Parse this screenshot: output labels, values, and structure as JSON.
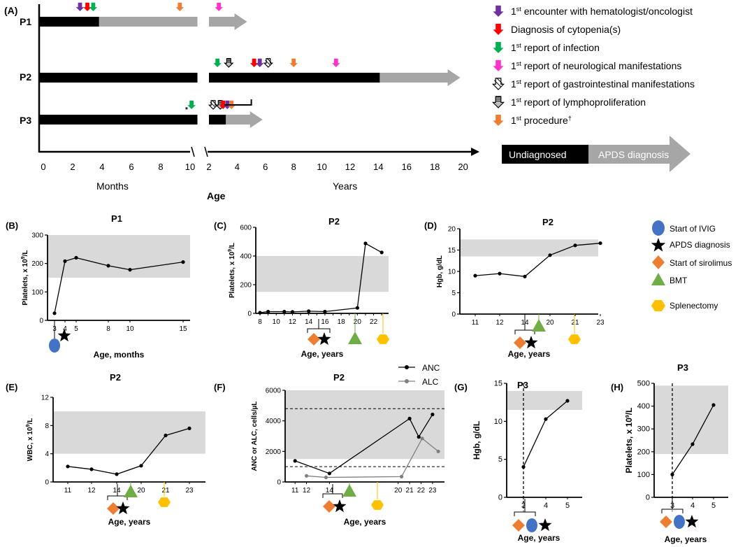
{
  "colors": {
    "black_bar": "#000000",
    "gray_bar": "#a6a6a6",
    "normal_range": "#d9d9d9",
    "purple": "#7030a0",
    "red": "#ff0000",
    "green": "#00b050",
    "magenta": "#ff33cc",
    "orange": "#ed7d31",
    "ivig_blue": "#4472c4",
    "bmt_green": "#70ad47",
    "splenectomy_gold": "#ffc000",
    "alc_gray": "#7f7f7f"
  },
  "timeline": {
    "panel_label": "(A)",
    "patients": [
      "P1",
      "P2",
      "P3"
    ],
    "months_ticks": [
      "0",
      "2",
      "4",
      "6",
      "8",
      "10"
    ],
    "years_ticks": [
      "2",
      "4",
      "6",
      "8",
      "10",
      "12",
      "14",
      "16",
      "18",
      "20"
    ],
    "months_label": "Months",
    "years_label": "Years",
    "age_label": "Age",
    "asterisk": "*",
    "events": [
      {
        "patient": "P1",
        "axis": "months",
        "value": 2.5,
        "event": "encounter"
      },
      {
        "patient": "P1",
        "axis": "months",
        "value": 3.0,
        "event": "diagnosis"
      },
      {
        "patient": "P1",
        "axis": "months",
        "value": 3.4,
        "event": "infection"
      },
      {
        "patient": "P1",
        "axis": "months",
        "value": 9.3,
        "event": "procedure"
      },
      {
        "patient": "P1",
        "axis": "years",
        "value": 2.7,
        "event": "neuro"
      },
      {
        "patient": "P2",
        "axis": "years",
        "value": 2.6,
        "event": "infection"
      },
      {
        "patient": "P2",
        "axis": "years",
        "value": 3.4,
        "event": "lymph"
      },
      {
        "patient": "P2",
        "axis": "years",
        "value": 5.2,
        "event": "diagnosis"
      },
      {
        "patient": "P2",
        "axis": "years",
        "value": 5.6,
        "event": "encounter"
      },
      {
        "patient": "P2",
        "axis": "years",
        "value": 6.2,
        "event": "gi"
      },
      {
        "patient": "P2",
        "axis": "years",
        "value": 8.0,
        "event": "procedure"
      },
      {
        "patient": "P2",
        "axis": "years",
        "value": 11.0,
        "event": "neuro"
      },
      {
        "patient": "P3",
        "axis": "months",
        "value": 10.1,
        "event": "infection"
      },
      {
        "patient": "P3",
        "axis": "years",
        "value": 2.3,
        "event": "gi"
      },
      {
        "patient": "P3",
        "axis": "years",
        "value": 2.8,
        "event": "lymph"
      },
      {
        "patient": "P3",
        "axis": "years",
        "value": 3.0,
        "event": "diagnosis"
      },
      {
        "patient": "P3",
        "axis": "years",
        "value": 3.3,
        "event": "encounter"
      },
      {
        "patient": "P3",
        "axis": "years",
        "value": 3.6,
        "event": "procedure"
      }
    ],
    "bars": [
      {
        "patient": "P1",
        "undiagnosed_months_to": 3.8,
        "gray_months_to": 10.5,
        "black_years_to": 1.5,
        "gray_years_to": 4.7
      },
      {
        "patient": "P2",
        "undiagnosed_months_to": 10.5,
        "black_years_to": 14.1,
        "gray_years_to": 19.8
      },
      {
        "patient": "P3",
        "undiagnosed_months_to": 10.5,
        "black_years_to": 3.2,
        "gray_years_to": 5.8
      }
    ]
  },
  "legend_a": {
    "items": [
      {
        "event": "encounter",
        "sup": "st",
        "text": " encounter with hematologist/oncologist"
      },
      {
        "event": "diagnosis",
        "sup": "",
        "text": "Diagnosis of cytopenia(s)"
      },
      {
        "event": "infection",
        "sup": "st",
        "text": " report of infection"
      },
      {
        "event": "neuro",
        "sup": "st",
        "text": " report of neurological manifestations"
      },
      {
        "event": "gi",
        "sup": "st",
        "text": " report of gastrointestinal manifestations"
      },
      {
        "event": "lymph",
        "sup": "st",
        "text": " report of lymphoproliferation"
      },
      {
        "event": "procedure",
        "sup": "st",
        "text": " procedure",
        "sup2": "†"
      }
    ],
    "undiagnosed": "Undiagnosed",
    "apds": "APDS diagnosis"
  },
  "legend_b": {
    "items": [
      "Start of IVIG",
      "APDS diagnosis",
      "Start of sirolimus",
      "BMT",
      "Splenectomy"
    ]
  },
  "chart_data": [
    {
      "id": "B",
      "label": "(B)",
      "type": "line",
      "title": "P1",
      "ylabel": "Platelets, x 10",
      "ylabel_sup": "9",
      "ylabel_unit": "/L",
      "xlabel": "Age, months",
      "categories": [
        "3",
        "4",
        "5",
        "8",
        "10",
        "15"
      ],
      "ylim": [
        0,
        300
      ],
      "yticks": [
        "0",
        "100",
        "200",
        "300"
      ],
      "normal_range": [
        150,
        300
      ],
      "series": [
        {
          "name": "Platelets",
          "values": [
            25,
            208,
            220,
            192,
            178,
            205
          ]
        }
      ],
      "markers": [
        "ivig",
        "apds"
      ]
    },
    {
      "id": "C",
      "label": "(C)",
      "type": "line",
      "title": "P2",
      "ylabel": "Platelets, x 10",
      "ylabel_sup": "9",
      "ylabel_unit": "/L",
      "xlabel": "Age, years",
      "categories": [
        "8",
        "9",
        "10",
        "11",
        "12",
        "13",
        "14",
        "15",
        "16",
        "17",
        "18",
        "19",
        "20",
        "21",
        "22",
        "23"
      ],
      "xtick_labels": [
        "8",
        "10",
        "12",
        "14",
        "16",
        "18",
        "20",
        "22"
      ],
      "ylim": [
        0,
        600
      ],
      "yticks": [
        "0",
        "200",
        "400",
        "600"
      ],
      "normal_range": [
        150,
        400
      ],
      "series": [
        {
          "name": "Platelets",
          "x": [
            8,
            9,
            11,
            12,
            14,
            16,
            20,
            21,
            23
          ],
          "values": [
            5,
            12,
            12,
            10,
            15,
            12,
            38,
            488,
            425
          ]
        }
      ],
      "markers": [
        "sirolimus",
        "apds",
        "bmt",
        "splenectomy"
      ]
    },
    {
      "id": "D",
      "label": "(D)",
      "type": "line",
      "title": "P2",
      "ylabel": "Hgb, g/dL",
      "xlabel": "Age, years",
      "categories": [
        "11",
        "12",
        "14",
        "20",
        "21",
        "23"
      ],
      "ylim": [
        0,
        20
      ],
      "yticks": [
        "0",
        "5",
        "10",
        "15",
        "20"
      ],
      "normal_range": [
        13.5,
        17.5
      ],
      "series": [
        {
          "name": "Hgb",
          "values": [
            9.0,
            9.5,
            8.8,
            13.8,
            16.1,
            16.6
          ]
        }
      ],
      "markers": [
        "sirolimus",
        "apds",
        "bmt",
        "splenectomy"
      ]
    },
    {
      "id": "E",
      "label": "(E)",
      "type": "line",
      "title": "P2",
      "ylabel": "WBC, x 10",
      "ylabel_sup": "9",
      "ylabel_unit": "/L",
      "xlabel": "Age, years",
      "categories": [
        "11",
        "12",
        "14",
        "20",
        "21",
        "23"
      ],
      "ylim": [
        0,
        12
      ],
      "yticks": [
        "0",
        "4",
        "8",
        "12"
      ],
      "normal_range": [
        4,
        10
      ],
      "series": [
        {
          "name": "WBC",
          "values": [
            2.2,
            1.8,
            1.1,
            2.3,
            6.6,
            7.6
          ]
        }
      ],
      "markers": [
        "sirolimus",
        "apds",
        "bmt",
        "splenectomy"
      ]
    },
    {
      "id": "F",
      "label": "(F)",
      "type": "line",
      "title": "P2",
      "ylabel": "ANC or ALC, cells/µL",
      "xlabel": "Age, years",
      "categories": [
        "11",
        "12",
        "14",
        "20",
        "21",
        "22",
        "23"
      ],
      "x_positions": [
        11,
        12,
        14,
        20,
        21,
        22,
        23
      ],
      "ylim": [
        0,
        6000
      ],
      "yticks": [
        "0",
        "2000",
        "4000",
        "6000"
      ],
      "normal_range": [
        1500,
        6000
      ],
      "dashed_lines": [
        4800,
        1000
      ],
      "series": [
        {
          "name": "ANC",
          "x": [
            11,
            14,
            21,
            21.8,
            23
          ],
          "values": [
            1380,
            560,
            4150,
            2950,
            4420
          ]
        },
        {
          "name": "ALC",
          "x": [
            12,
            13.7,
            20.3,
            22.1,
            23.5
          ],
          "values": [
            400,
            300,
            350,
            2850,
            2000
          ]
        }
      ],
      "markers": [
        "sirolimus",
        "apds",
        "bmt",
        "splenectomy"
      ]
    },
    {
      "id": "G",
      "label": "(G)",
      "type": "line",
      "title": "P3",
      "ylabel": "Hgb, g/dL",
      "xlabel": "Age, years",
      "categories": [
        "3",
        "4",
        "5"
      ],
      "ylim": [
        0,
        15
      ],
      "yticks": [
        "0",
        "5",
        "10",
        "15"
      ],
      "normal_range": [
        11.5,
        14
      ],
      "series": [
        {
          "name": "Hgb",
          "values": [
            4.0,
            10.3,
            12.7
          ]
        }
      ],
      "markers": [
        "sirolimus",
        "ivig",
        "apds"
      ]
    },
    {
      "id": "H",
      "label": "(H)",
      "type": "line",
      "title": "P3",
      "ylabel": "Platelets, x 10",
      "ylabel_sup": "9",
      "ylabel_unit": "/L",
      "xlabel": "Age, years",
      "categories": [
        "3",
        "4",
        "5"
      ],
      "ylim": [
        0,
        500
      ],
      "yticks": [
        "0",
        "100",
        "200",
        "300",
        "400",
        "500"
      ],
      "normal_range": [
        190,
        490
      ],
      "series": [
        {
          "name": "Platelets",
          "values": [
            100,
            233,
            405
          ]
        }
      ],
      "markers": [
        "sirolimus",
        "ivig",
        "apds"
      ]
    }
  ]
}
